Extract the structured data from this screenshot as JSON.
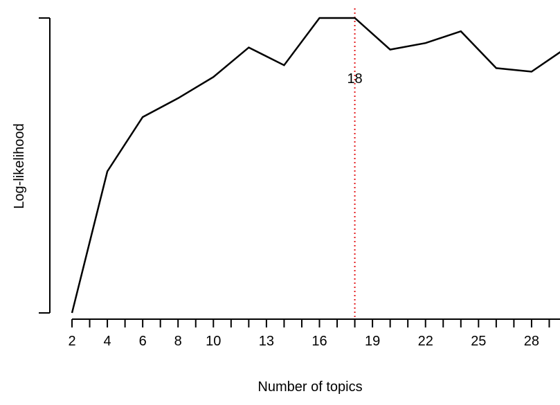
{
  "chart_data": {
    "type": "line",
    "xlabel": "Number of topics",
    "ylabel": "Log-likelihood",
    "x": [
      2,
      4,
      6,
      8,
      10,
      12,
      14,
      16,
      18,
      20,
      22,
      24,
      26,
      28,
      30
    ],
    "y": [
      0.0,
      0.48,
      0.664,
      0.728,
      0.8,
      0.9,
      0.84,
      1.0,
      1.0,
      0.893,
      0.915,
      0.955,
      0.83,
      0.818,
      0.9
    ],
    "xlim": [
      2,
      30
    ],
    "ylim": [
      0,
      1
    ],
    "x_ticks": [
      2,
      3,
      4,
      5,
      6,
      7,
      8,
      9,
      10,
      11,
      12,
      13,
      14,
      15,
      16,
      17,
      18,
      19,
      20,
      21,
      22,
      23,
      24,
      25,
      26,
      27,
      28,
      29,
      30
    ],
    "x_tick_labels": [
      2,
      4,
      6,
      8,
      10,
      13,
      16,
      19,
      22,
      25,
      28
    ],
    "y_tick_labels": [],
    "grid": false,
    "reference_line": {
      "x": 18,
      "label": "18",
      "color": "#e41a1c",
      "style": "dotted"
    },
    "line_color": "#000000"
  }
}
